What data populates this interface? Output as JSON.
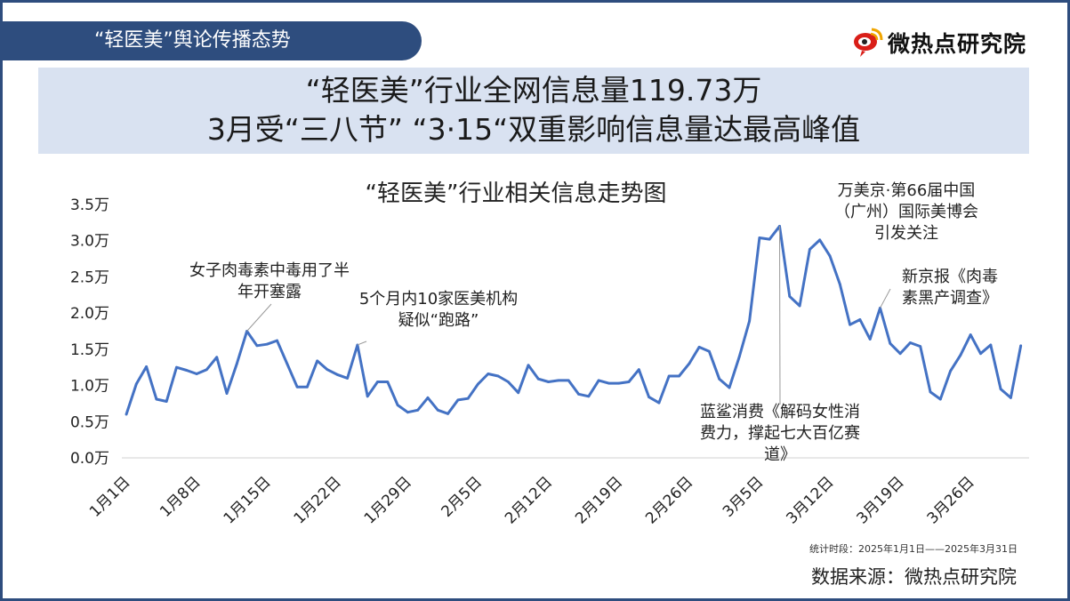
{
  "header": {
    "tab_title": "“轻医美”舆论传播态势"
  },
  "brand": {
    "name": "微热点研究院",
    "icon": "weibo-eye-logo-icon",
    "color": "#d91e18"
  },
  "headline": {
    "line1": "“轻医美”行业全网信息量119.73万",
    "line2": "3月受“三八节” “3·15“双重影响信息量达最高峰值"
  },
  "colors": {
    "accent": "#2e4d7e",
    "headline_bg": "#d9e2f1",
    "line": "#4472c4"
  },
  "chart_data": {
    "type": "line",
    "title": "“轻医美”行业相关信息走势图",
    "xlabel": "",
    "ylabel": "",
    "ylim": [
      0,
      3.5
    ],
    "y_unit": "万",
    "yticks": [
      "0.0万",
      "0.5万",
      "1.0万",
      "1.5万",
      "2.0万",
      "2.5万",
      "3.0万",
      "3.5万"
    ],
    "x_tick_labels": [
      "1月1日",
      "1月8日",
      "1月15日",
      "1月22日",
      "1月29日",
      "2月5日",
      "2月12日",
      "2月19日",
      "2月26日",
      "3月5日",
      "3月12日",
      "3月19日",
      "3月26日"
    ],
    "grid": false,
    "legend": "none",
    "series": [
      {
        "values": [
          0.6,
          1.02,
          1.26,
          0.81,
          0.78,
          1.25,
          1.21,
          1.16,
          1.22,
          1.39,
          0.89,
          1.3,
          1.75,
          1.55,
          1.57,
          1.62,
          1.3,
          0.98,
          0.98,
          1.34,
          1.22,
          1.15,
          1.1,
          1.56,
          0.85,
          1.05,
          1.05,
          0.73,
          0.63,
          0.66,
          0.83,
          0.66,
          0.61,
          0.8,
          0.82,
          1.02,
          1.16,
          1.13,
          1.05,
          0.9,
          1.28,
          1.09,
          1.05,
          1.07,
          1.07,
          0.88,
          0.85,
          1.07,
          1.03,
          1.03,
          1.05,
          1.22,
          0.84,
          0.76,
          1.13,
          1.13,
          1.3,
          1.53,
          1.47,
          1.09,
          0.97,
          1.4,
          1.89,
          3.04,
          3.02,
          3.2,
          2.23,
          2.1,
          2.88,
          3.01,
          2.79,
          2.4,
          1.84,
          1.91,
          1.64,
          2.07,
          1.58,
          1.44,
          1.59,
          1.54,
          0.91,
          0.81,
          1.2,
          1.42,
          1.7,
          1.44,
          1.56,
          0.95,
          0.83,
          1.55
        ]
      }
    ],
    "annotations": [
      {
        "text_lines": [
          "女子肉毒素中毒用了半",
          "年开塞露"
        ],
        "index": 12
      },
      {
        "text_lines": [
          "5个月内10家医美机构",
          "疑似“跑路”"
        ],
        "index": 23
      },
      {
        "text_lines": [
          "蓝鲨消费《解码女性消",
          "费力，撑起七大百亿赛",
          "道》"
        ],
        "index": 65
      },
      {
        "text_lines": [
          "万美京·第66届中国",
          "（广州）国际美博会",
          "引发关注"
        ],
        "index": 69
      },
      {
        "text_lines": [
          "新京报《肉毒",
          "素黑产调查》"
        ],
        "index": 75
      }
    ]
  },
  "footer": {
    "period": "统计时段：2025年1月1日——2025年3月31日",
    "source": "数据来源：微热点研究院"
  }
}
